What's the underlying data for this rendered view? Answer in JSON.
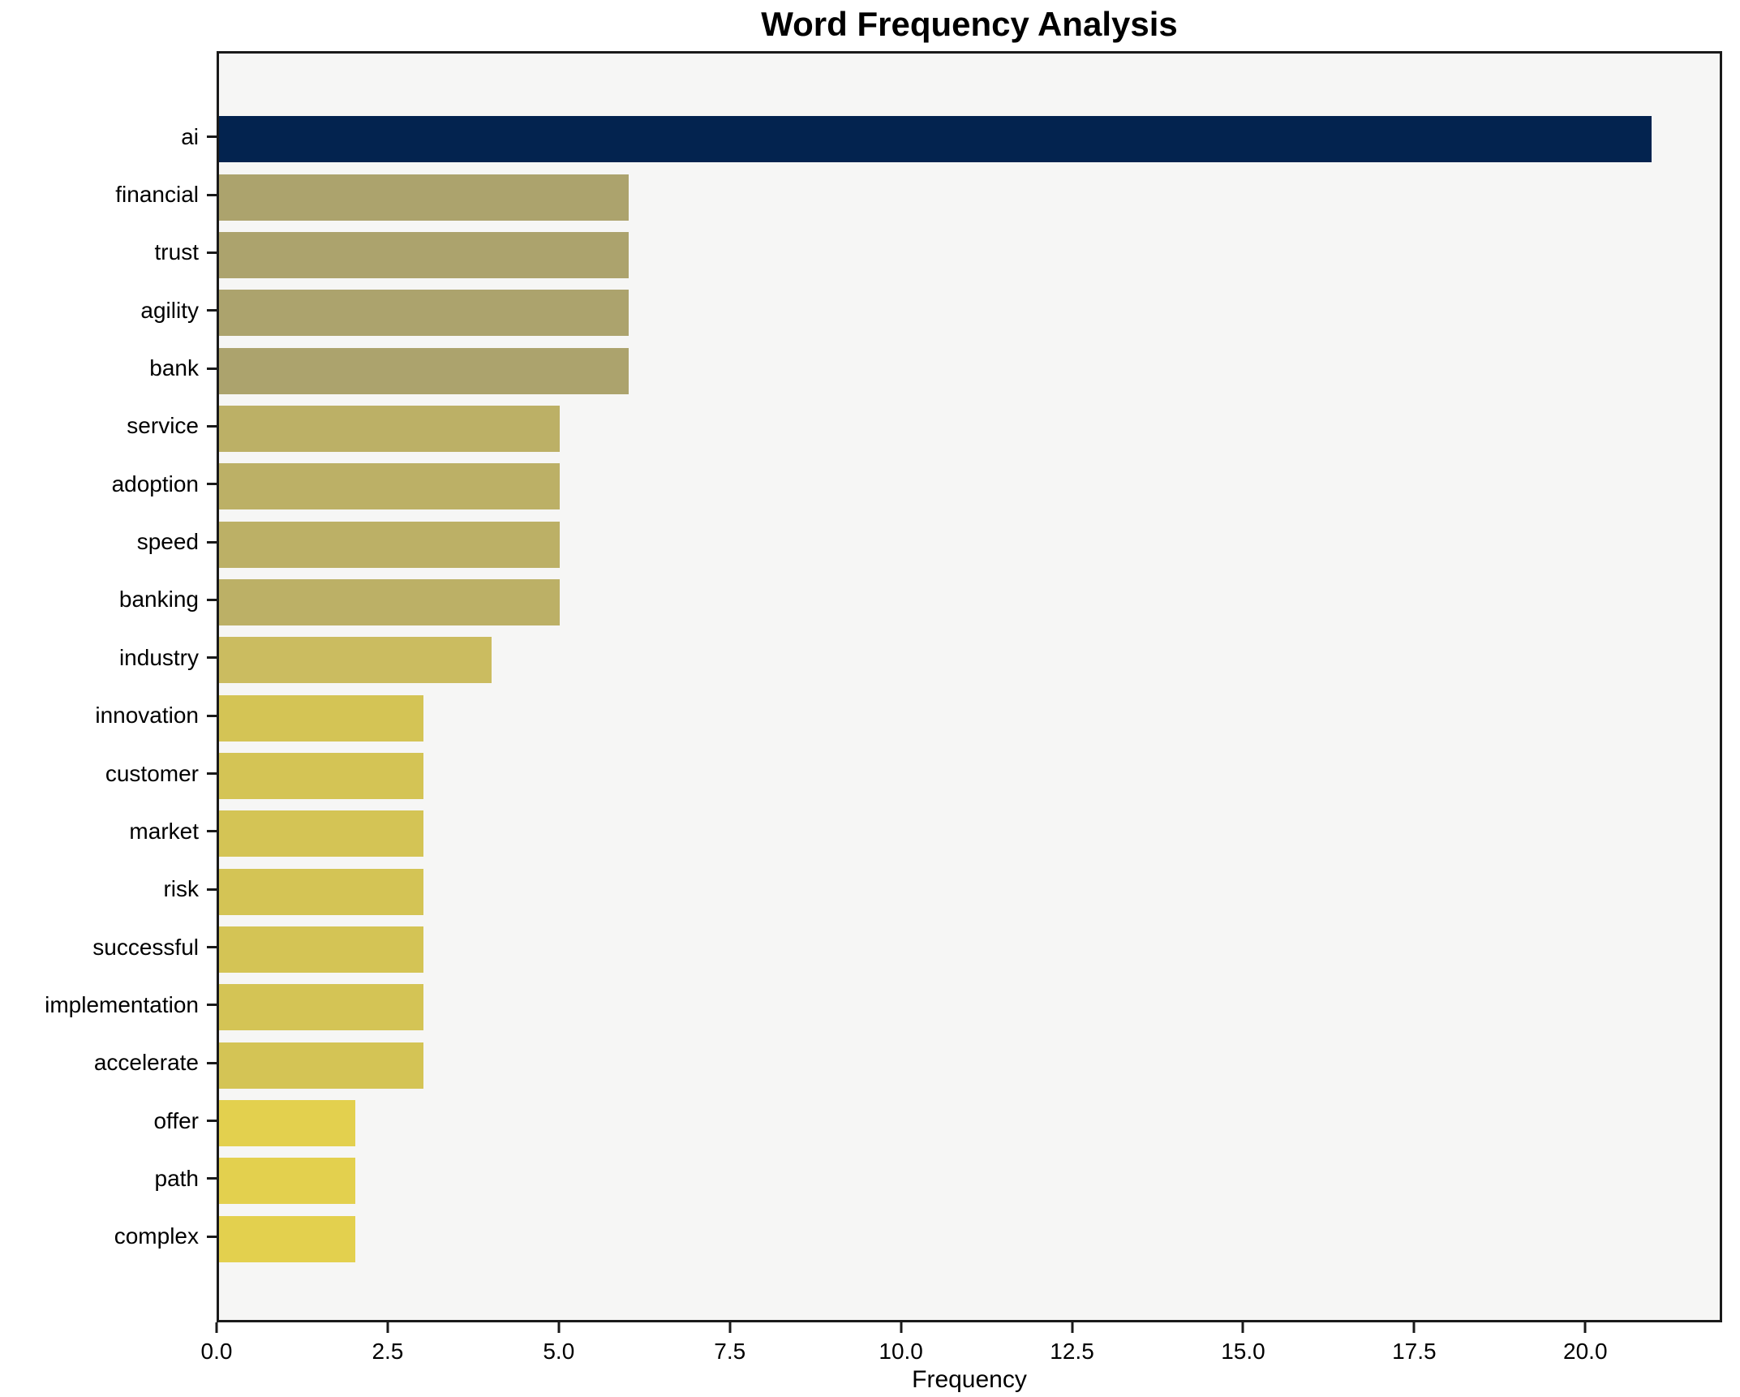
{
  "chart_data": {
    "type": "bar",
    "orientation": "horizontal",
    "title": "Word Frequency Analysis",
    "xlabel": "Frequency",
    "ylabel": "",
    "categories": [
      "ai",
      "financial",
      "trust",
      "agility",
      "bank",
      "service",
      "adoption",
      "speed",
      "banking",
      "industry",
      "innovation",
      "customer",
      "market",
      "risk",
      "successful",
      "implementation",
      "accelerate",
      "offer",
      "path",
      "complex"
    ],
    "values": [
      21,
      6,
      6,
      6,
      6,
      5,
      5,
      5,
      5,
      4,
      3,
      3,
      3,
      3,
      3,
      3,
      3,
      2,
      2,
      2
    ],
    "bar_colors": [
      "#03234f",
      "#aca36d",
      "#aca36d",
      "#aca36d",
      "#aca36d",
      "#bcb066",
      "#bcb066",
      "#bcb066",
      "#bcb066",
      "#cbbc60",
      "#d4c455",
      "#d4c455",
      "#d4c455",
      "#d4c455",
      "#d4c455",
      "#d4c455",
      "#d4c455",
      "#e3d04e",
      "#e3d04e",
      "#e3d04e"
    ],
    "xlim": [
      0,
      22
    ],
    "xticks": [
      {
        "label": "0.0",
        "value": 0
      },
      {
        "label": "2.5",
        "value": 2.5
      },
      {
        "label": "5.0",
        "value": 5
      },
      {
        "label": "7.5",
        "value": 7.5
      },
      {
        "label": "10.0",
        "value": 10
      },
      {
        "label": "12.5",
        "value": 12.5
      },
      {
        "label": "15.0",
        "value": 15
      },
      {
        "label": "17.5",
        "value": 17.5
      },
      {
        "label": "20.0",
        "value": 20
      }
    ],
    "grid": false,
    "legend_position": "none",
    "plot_background": "#f6f6f5",
    "figure_background": "#ffffff",
    "spine_color": "#1a1a1a",
    "max_bar_color": "#03234f",
    "min_bar_color": "#e3d04e"
  }
}
